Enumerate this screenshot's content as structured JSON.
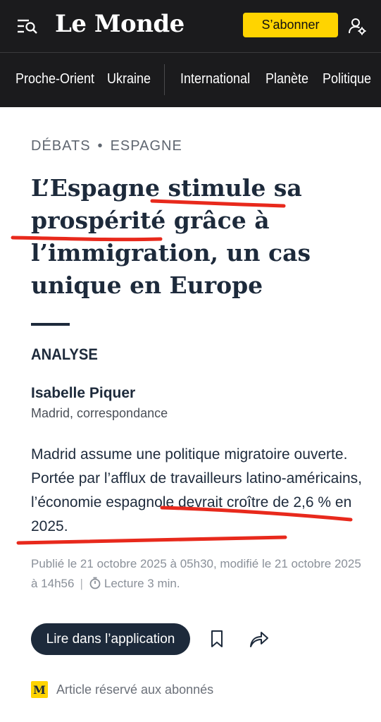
{
  "header": {
    "logo": "Le Monde",
    "subscribe_label": "S’abonner",
    "menu_icon": "menu-search-icon",
    "account_icon": "account-settings-icon"
  },
  "nav": {
    "items": [
      "Proche-Orient",
      "Ukraine",
      "International",
      "Planète",
      "Politique"
    ]
  },
  "article": {
    "kicker": {
      "section": "DÉBATS",
      "separator": "•",
      "topic": "ESPAGNE"
    },
    "title": "L’Espagne stimule sa prospérité grâce à l’immigration, un cas unique en Europe",
    "label": "ANALYSE",
    "author": "Isabelle Piquer",
    "author_role": "Madrid, correspondance",
    "lede": "Madrid assume une politique migratoire ouverte. Portée par l’afflux de travailleurs latino-américains, l’économie espagnole devrait croître de 2,6 % en 2025.",
    "published": "Publié le 21 octobre 2025 à 05h30, modifié le 21 octobre 2025 à 14h56",
    "meta_separator": "|",
    "reading_time": "Lecture 3 min."
  },
  "actions": {
    "app_button": "Lire dans l’application",
    "bookmark_icon": "bookmark-icon",
    "share_icon": "share-icon"
  },
  "subscriber": {
    "badge": "M",
    "text": "Article réservé aux abonnés"
  },
  "colors": {
    "header_bg": "#1b1b1d",
    "accent": "#ffd400",
    "text_dark": "#1d2a3b",
    "annotation_red": "#e8291c"
  }
}
